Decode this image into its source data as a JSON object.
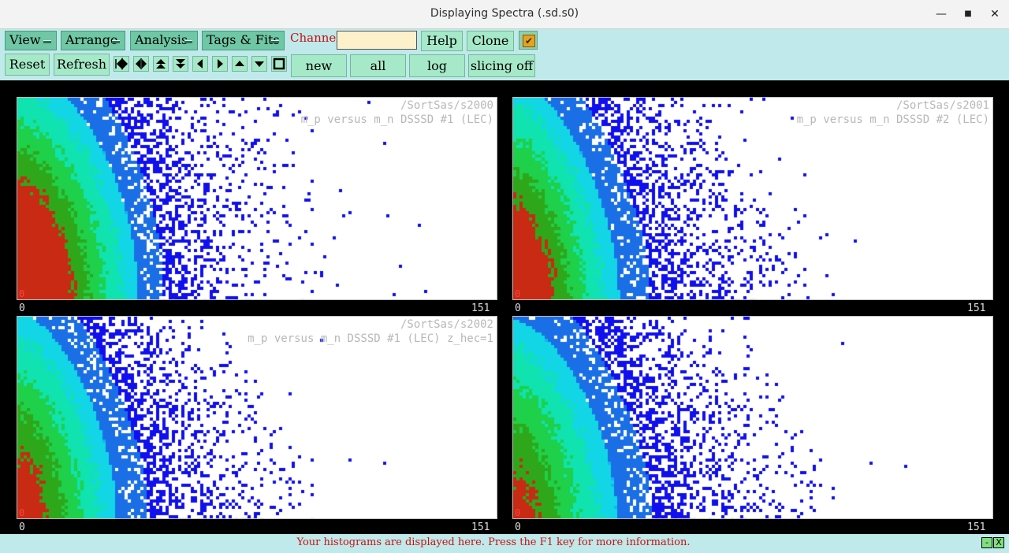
{
  "window": {
    "title": "Displaying Spectra (.sd.s0)",
    "minimize": "—",
    "maximize": "■",
    "close": "✕"
  },
  "toolbar": {
    "menus": [
      "View",
      "Arrange",
      "Analysis",
      "Tags & Fits"
    ],
    "channel_label": "Channel:",
    "channel_value": "",
    "help": "Help",
    "clone": "Clone",
    "checkbox_mark": "✔",
    "reset": "Reset",
    "refresh": "Refresh",
    "nav_icons": [
      "first-icon",
      "expand-horizontal-icon",
      "zoom-in-up-icon",
      "zoom-out-down-icon",
      "left-icon",
      "right-icon",
      "up-icon",
      "down-icon",
      "stop-icon"
    ],
    "new": "new",
    "all": "all",
    "log": "log",
    "slicing": "slicing off"
  },
  "panels": [
    {
      "path": "/SortSas/s2000",
      "desc": "m_p versus m_n DSSSD #1 (LEC)",
      "xmin": "0",
      "xmax": "151",
      "zero": "0"
    },
    {
      "path": "/SortSas/s2001",
      "desc": "m_p versus m_n DSSSD #2 (LEC)",
      "xmin": "0",
      "xmax": "151",
      "zero": "0"
    },
    {
      "path": "/SortSas/s2002",
      "desc": "m_p versus m_n DSSSD #1 (LEC) z_hec=1",
      "xmin": "0",
      "xmax": "151",
      "zero": "0"
    },
    {
      "path": "",
      "desc": "",
      "xmin": "0",
      "xmax": "151",
      "zero": "0"
    }
  ],
  "status": {
    "message": "Your histograms are displayed here. Press the F1 key for more information.",
    "icons": [
      "-",
      "X"
    ]
  },
  "colors": {
    "accent_red": "#cc1010",
    "button_green": "#a5e9c8",
    "menu_green": "#6fc7a6",
    "bg_cyan": "#bfe9ea"
  }
}
